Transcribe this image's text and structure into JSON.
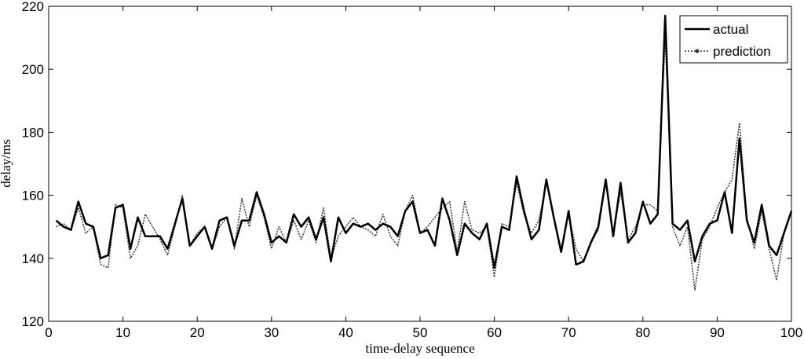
{
  "chart_data": {
    "type": "line",
    "xlabel": "time-delay sequence",
    "ylabel": "delay/ms",
    "xlim": [
      0,
      100
    ],
    "ylim": [
      120,
      220
    ],
    "xticks": [
      0,
      10,
      20,
      30,
      40,
      50,
      60,
      70,
      80,
      90,
      100
    ],
    "yticks": [
      120,
      140,
      160,
      180,
      200,
      220
    ],
    "grid": false,
    "legend_position": "top-right",
    "x": [
      1,
      2,
      3,
      4,
      5,
      6,
      7,
      8,
      9,
      10,
      11,
      12,
      13,
      14,
      15,
      16,
      17,
      18,
      19,
      20,
      21,
      22,
      23,
      24,
      25,
      26,
      27,
      28,
      29,
      30,
      31,
      32,
      33,
      34,
      35,
      36,
      37,
      38,
      39,
      40,
      41,
      42,
      43,
      44,
      45,
      46,
      47,
      48,
      49,
      50,
      51,
      52,
      53,
      54,
      55,
      56,
      57,
      58,
      59,
      60,
      61,
      62,
      63,
      64,
      65,
      66,
      67,
      68,
      69,
      70,
      71,
      72,
      73,
      74,
      75,
      76,
      77,
      78,
      79,
      80,
      81,
      82,
      83,
      84,
      85,
      86,
      87,
      88,
      89,
      90,
      91,
      92,
      93,
      94,
      95,
      96,
      97,
      98,
      99,
      100
    ],
    "series": [
      {
        "name": "actual",
        "style": "solid",
        "color": "#000000",
        "values": [
          152,
          150,
          149,
          158,
          151,
          150,
          140,
          141,
          156,
          157,
          143,
          153,
          147,
          147,
          147,
          143,
          151,
          159,
          144,
          147,
          150,
          143,
          152,
          153,
          144,
          152,
          152,
          161,
          154,
          145,
          147,
          145,
          154,
          150,
          153,
          146,
          153,
          139,
          153,
          148,
          151,
          150,
          151,
          149,
          151,
          150,
          147,
          155,
          158,
          148,
          149,
          144,
          159,
          152,
          141,
          151,
          148,
          146,
          151,
          137,
          150,
          149,
          166,
          155,
          146,
          149,
          165,
          153,
          142,
          155,
          138,
          139,
          145,
          150,
          165,
          147,
          164,
          145,
          148,
          158,
          151,
          154,
          217,
          151,
          149,
          152,
          139,
          147,
          151,
          152,
          161,
          148,
          178,
          152,
          145,
          157,
          144,
          141,
          148,
          155
        ]
      },
      {
        "name": "prediction",
        "style": "dotted",
        "color": "#333333",
        "values": [
          150,
          151,
          149,
          156,
          148,
          150,
          138,
          137,
          157,
          156,
          140,
          144,
          154,
          150,
          146,
          141,
          150,
          160,
          144,
          148,
          150,
          143,
          150,
          153,
          143,
          159,
          150,
          160,
          153,
          143,
          150,
          145,
          152,
          146,
          152,
          145,
          156,
          140,
          147,
          150,
          153,
          150,
          149,
          147,
          154,
          147,
          144,
          155,
          160,
          148,
          150,
          153,
          156,
          158,
          142,
          158,
          149,
          148,
          150,
          134,
          151,
          150,
          164,
          154,
          148,
          152,
          164,
          153,
          143,
          154,
          143,
          139,
          145,
          149,
          164,
          148,
          161,
          146,
          150,
          157,
          157,
          155,
          211,
          150,
          144,
          150,
          130,
          146,
          150,
          156,
          161,
          165,
          183,
          153,
          143,
          155,
          143,
          133,
          148,
          155
        ]
      }
    ]
  }
}
